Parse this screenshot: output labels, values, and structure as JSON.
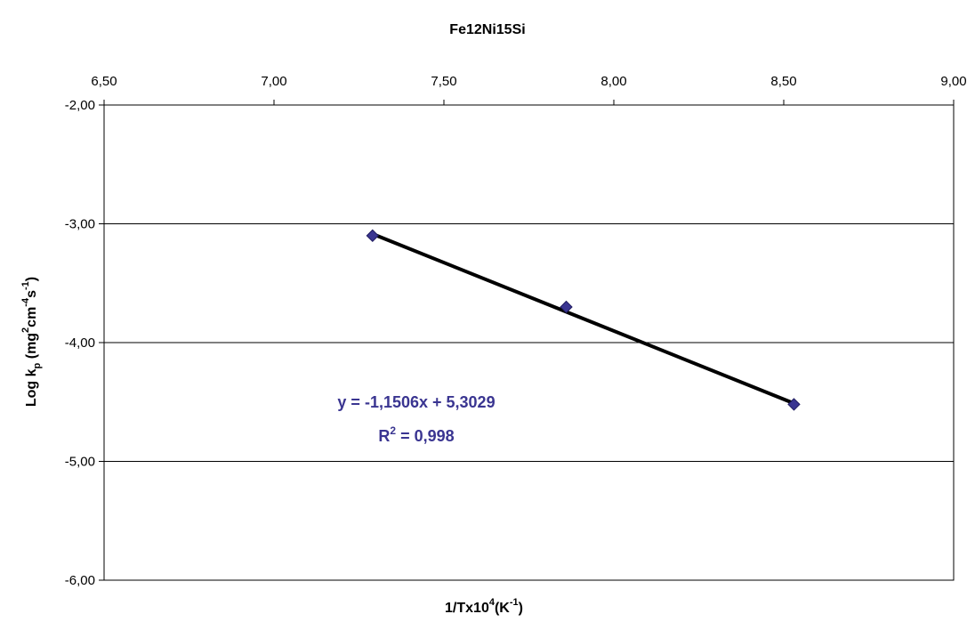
{
  "chart_data": {
    "type": "scatter",
    "title": "Fe12Ni15Si",
    "x_axis": {
      "label": {
        "base": "1/Tx10",
        "sup1": "4",
        "mid": "(K",
        "sup2": "-1",
        "end": ")"
      },
      "position": "top",
      "range": [
        6.5,
        9.0
      ],
      "ticks": [
        6.5,
        7.0,
        7.5,
        8.0,
        8.5,
        9.0
      ],
      "tick_labels": [
        "6,50",
        "7,00",
        "7,50",
        "8,00",
        "8,50",
        "9,00"
      ]
    },
    "y_axis": {
      "label": {
        "p1": "Log k",
        "sub1": "p",
        "p2": " (mg",
        "sup1": "2",
        "p3": "cm",
        "sup2": "-4",
        "p4": "s",
        "sup3": "-1",
        "p5": ")"
      },
      "range": [
        -6.0,
        -2.0
      ],
      "ticks": [
        -2.0,
        -3.0,
        -4.0,
        -5.0,
        -6.0
      ],
      "tick_labels": [
        "-2,00",
        "-3,00",
        "-4,00",
        "-5,00",
        "-6,00"
      ]
    },
    "grid": {
      "horizontal": true,
      "vertical": false
    },
    "series": [
      {
        "points": [
          {
            "x": 7.29,
            "y": -3.1
          },
          {
            "x": 7.86,
            "y": -3.7
          },
          {
            "x": 8.53,
            "y": -4.52
          }
        ],
        "marker": "diamond",
        "color": "#3a3591"
      }
    ],
    "trendline": {
      "slope": -1.1506,
      "intercept": 5.3029,
      "x_from": 7.29,
      "x_to": 8.53,
      "color": "#000000",
      "equation_text": "y = -1,1506x + 5,3029",
      "r2": {
        "base": "R",
        "sup": "2",
        "rest": " = 0,998"
      },
      "label_color": "#3a3591"
    }
  }
}
